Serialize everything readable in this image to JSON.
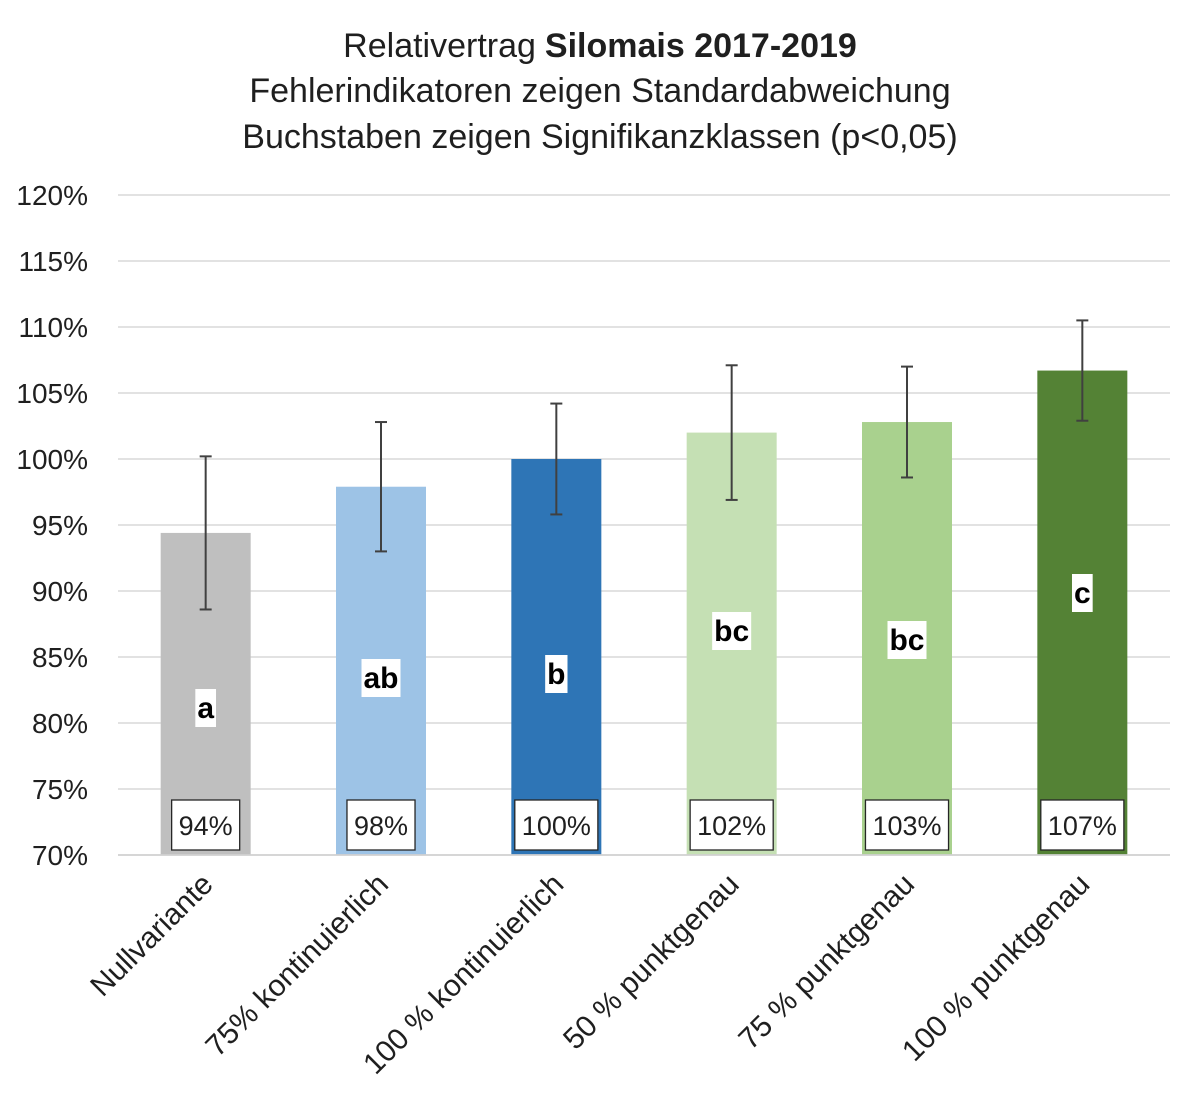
{
  "chart_data": {
    "type": "bar",
    "title": {
      "text": "Relativertrag",
      "bold": "Silomais 2017-2019"
    },
    "subtitle": [
      "Fehlerindikatoren zeigen Standardabweichung",
      "Buchstaben zeigen Signifikanzklassen (p<0,05)"
    ],
    "ylim": [
      70,
      120
    ],
    "yticks": [
      70,
      75,
      80,
      85,
      90,
      95,
      100,
      105,
      110,
      115,
      120
    ],
    "ytick_labels": [
      "70%",
      "75%",
      "80%",
      "85%",
      "90%",
      "95%",
      "100%",
      "105%",
      "110%",
      "115%",
      "120%"
    ],
    "grid": true,
    "categories": [
      "Nullvariante",
      "75% kontinuierlich",
      "100 % kontinuierlich",
      "50 % punktgenau",
      "75 % punktgenau",
      "100 % punktgenau"
    ],
    "values": [
      94.4,
      97.9,
      100.0,
      102.0,
      102.8,
      106.7
    ],
    "error_sd": [
      5.8,
      4.9,
      4.2,
      5.1,
      4.2,
      3.8
    ],
    "data_labels": [
      "94%",
      "98%",
      "100%",
      "102%",
      "103%",
      "107%"
    ],
    "significance_letters": [
      "a",
      "ab",
      "b",
      "bc",
      "bc",
      "c"
    ],
    "colors": [
      "#BFBFBF",
      "#9DC3E6",
      "#2E75B6",
      "#C5E0B4",
      "#A9D18E",
      "#548235"
    ]
  }
}
